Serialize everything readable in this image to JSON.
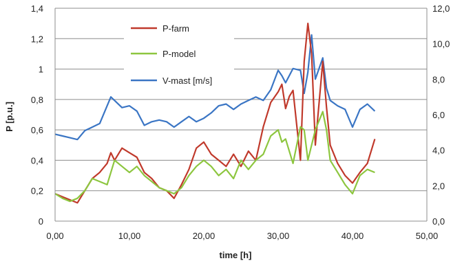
{
  "chart_data": {
    "type": "line",
    "xlabel": "time [h]",
    "ylabel": "P [p.u.]",
    "y2label": "",
    "xlim": [
      0,
      50
    ],
    "ylim": [
      0,
      1.4
    ],
    "y2lim": [
      0,
      12
    ],
    "grid": true,
    "legend_position": "top-center",
    "x_ticks": [
      "0,00",
      "10,00",
      "20,00",
      "30,00",
      "40,00",
      "50,00"
    ],
    "y_ticks": [
      "0",
      "0,2",
      "0,4",
      "0,6",
      "0,8",
      "1",
      "1,2",
      "1,4"
    ],
    "y2_ticks": [
      "0,0",
      "2,0",
      "4,0",
      "6,0",
      "8,0",
      "10,0",
      "12,0"
    ],
    "series": [
      {
        "name": "P-farm",
        "color": "#c0392b",
        "axis": "left",
        "x": [
          0,
          1,
          2,
          3,
          4,
          5,
          6,
          7,
          7.5,
          8,
          9,
          10,
          11,
          12,
          13,
          14,
          15,
          16,
          17,
          18,
          19,
          20,
          21,
          22,
          23,
          24,
          25,
          26,
          27,
          28,
          29,
          30,
          30.5,
          31,
          31.5,
          32,
          33,
          33.5,
          34,
          34.5,
          35,
          36,
          36.5,
          37,
          38,
          39,
          40,
          41,
          42,
          43
        ],
        "y": [
          0.18,
          0.16,
          0.14,
          0.12,
          0.2,
          0.28,
          0.32,
          0.38,
          0.45,
          0.4,
          0.48,
          0.45,
          0.42,
          0.32,
          0.28,
          0.22,
          0.2,
          0.15,
          0.24,
          0.34,
          0.48,
          0.52,
          0.44,
          0.4,
          0.36,
          0.44,
          0.36,
          0.46,
          0.4,
          0.62,
          0.78,
          0.85,
          0.9,
          0.74,
          0.82,
          0.86,
          0.4,
          1.05,
          1.3,
          1.1,
          0.5,
          1.05,
          0.75,
          0.5,
          0.38,
          0.3,
          0.25,
          0.32,
          0.38,
          0.54
        ]
      },
      {
        "name": "P-model",
        "color": "#8dc63f",
        "axis": "left",
        "x": [
          0,
          1,
          2,
          3,
          4,
          5,
          6,
          7,
          8,
          9,
          10,
          11,
          12,
          13,
          14,
          15,
          16,
          17,
          18,
          19,
          20,
          21,
          22,
          23,
          24,
          25,
          26,
          27,
          28,
          29,
          30,
          30.5,
          31,
          32,
          33,
          33.5,
          34,
          34.5,
          35,
          36,
          36.5,
          37,
          38,
          39,
          40,
          41,
          42,
          43
        ],
        "y": [
          0.18,
          0.15,
          0.13,
          0.15,
          0.2,
          0.28,
          0.26,
          0.24,
          0.4,
          0.36,
          0.32,
          0.36,
          0.3,
          0.26,
          0.22,
          0.2,
          0.18,
          0.22,
          0.3,
          0.36,
          0.4,
          0.36,
          0.3,
          0.34,
          0.28,
          0.4,
          0.34,
          0.4,
          0.44,
          0.56,
          0.6,
          0.52,
          0.54,
          0.38,
          0.62,
          0.6,
          0.4,
          0.5,
          0.6,
          0.72,
          0.6,
          0.4,
          0.32,
          0.24,
          0.18,
          0.3,
          0.34,
          0.32
        ]
      },
      {
        "name": "V-mast [m/s]",
        "color": "#3a75c4",
        "axis": "right",
        "x": [
          0,
          1,
          2,
          3,
          4,
          5,
          6,
          7,
          7.5,
          8,
          9,
          10,
          11,
          12,
          13,
          14,
          15,
          16,
          17,
          18,
          19,
          20,
          21,
          22,
          23,
          24,
          25,
          26,
          27,
          28,
          29,
          30,
          30.5,
          31,
          32,
          33,
          33.5,
          34,
          34.5,
          35,
          36,
          36.5,
          37,
          38,
          39,
          40,
          41,
          42,
          43
        ],
        "y": [
          4.9,
          4.8,
          4.7,
          4.6,
          5.1,
          5.3,
          5.5,
          6.5,
          7.0,
          6.8,
          6.4,
          6.5,
          6.2,
          5.4,
          5.6,
          5.7,
          5.6,
          5.3,
          5.6,
          5.9,
          5.6,
          5.8,
          6.1,
          6.5,
          6.6,
          6.3,
          6.6,
          6.8,
          7.0,
          6.8,
          7.4,
          8.5,
          8.2,
          7.8,
          8.6,
          8.5,
          7.2,
          8.4,
          10.5,
          8.0,
          9.2,
          7.5,
          6.8,
          6.5,
          6.3,
          5.3,
          6.3,
          6.6,
          6.2
        ]
      }
    ]
  }
}
